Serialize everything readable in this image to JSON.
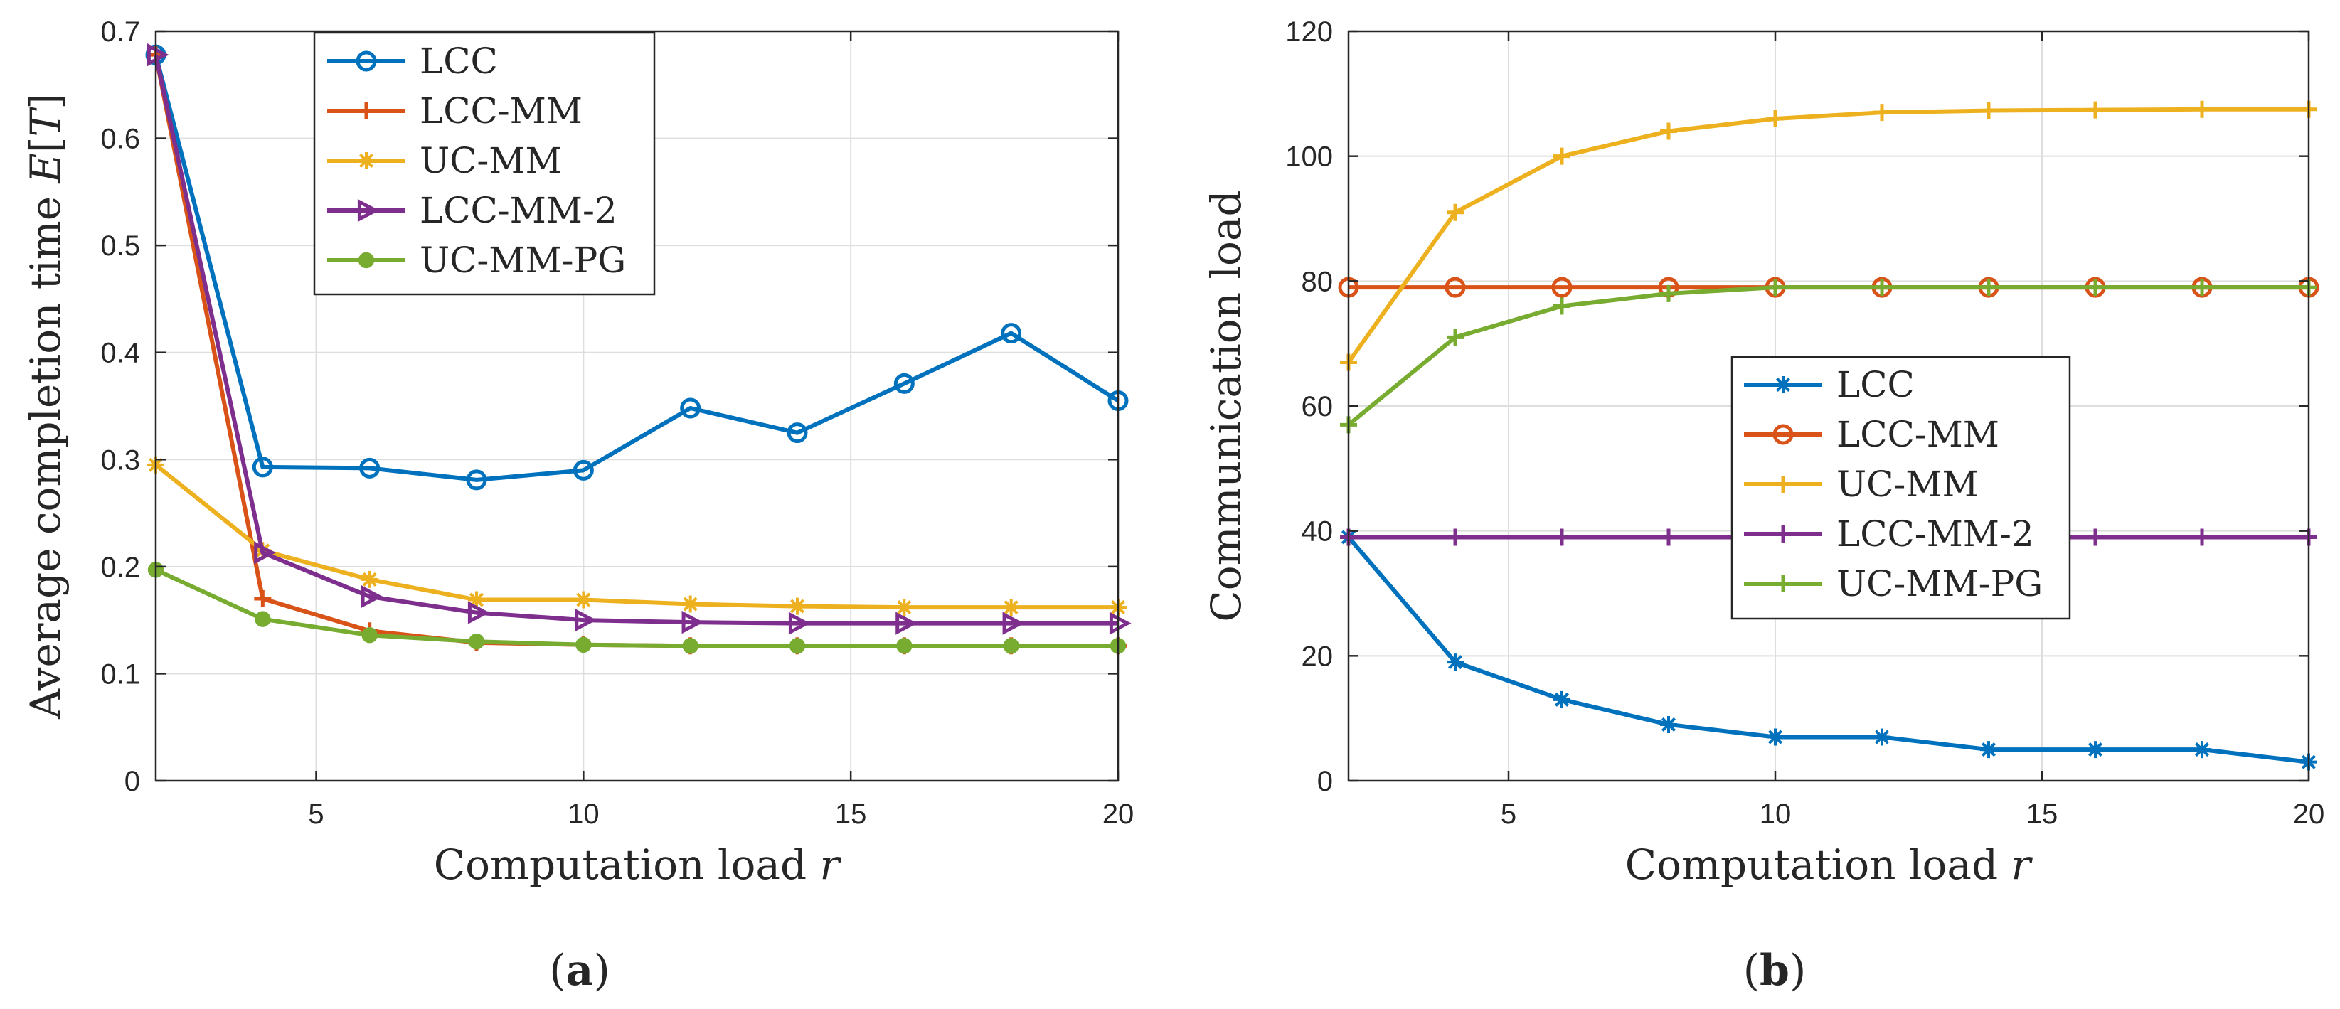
{
  "figure": {
    "caption_a": "(a)",
    "caption_b": "(b)"
  },
  "chart_data": [
    {
      "type": "line",
      "id": "a",
      "xlabel": "Computation load r",
      "xlabel_main": "Computation load ",
      "xlabel_var": "r",
      "ylabel": "Average completion time E[T]",
      "ylabel_main": "Average completion time ",
      "ylabel_var": "E",
      "ylabel_open": "[",
      "ylabel_var2": "T",
      "ylabel_close": "]",
      "xlim": [
        2,
        20
      ],
      "ylim": [
        0,
        0.7
      ],
      "xticks": [
        5,
        10,
        15,
        20
      ],
      "yticks": [
        0,
        0.1,
        0.2,
        0.3,
        0.4,
        0.5,
        0.6,
        0.7
      ],
      "grid": true,
      "legend_position": "top-center",
      "x": [
        2,
        4,
        6,
        8,
        10,
        12,
        14,
        16,
        18,
        20
      ],
      "series": [
        {
          "name": "LCC",
          "color": "#0072BD",
          "marker": "circle-open",
          "values": [
            0.678,
            0.293,
            0.292,
            0.281,
            0.29,
            0.348,
            0.325,
            0.371,
            0.418,
            0.355
          ]
        },
        {
          "name": "LCC-MM",
          "color": "#D95319",
          "marker": "plus",
          "values": [
            0.678,
            0.17,
            0.14,
            0.129,
            0.127,
            0.126,
            0.126,
            0.126,
            0.126,
            0.126
          ]
        },
        {
          "name": "UC-MM",
          "color": "#EDB120",
          "marker": "star",
          "values": [
            0.295,
            0.215,
            0.188,
            0.169,
            0.169,
            0.165,
            0.163,
            0.162,
            0.162,
            0.162
          ]
        },
        {
          "name": "LCC-MM-2",
          "color": "#7E2F8E",
          "marker": "triangle-right",
          "values": [
            0.678,
            0.213,
            0.172,
            0.157,
            0.15,
            0.148,
            0.147,
            0.147,
            0.147,
            0.147
          ]
        },
        {
          "name": "UC-MM-PG",
          "color": "#77AC30",
          "marker": "dot",
          "values": [
            0.197,
            0.151,
            0.136,
            0.13,
            0.127,
            0.126,
            0.126,
            0.126,
            0.126,
            0.126
          ]
        }
      ]
    },
    {
      "type": "line",
      "id": "b",
      "xlabel": "Computation load r",
      "xlabel_main": "Computation load ",
      "xlabel_var": "r",
      "ylabel": "Communication load",
      "xlim": [
        2,
        20
      ],
      "ylim": [
        0,
        120
      ],
      "xticks": [
        5,
        10,
        15,
        20
      ],
      "yticks": [
        0,
        20,
        40,
        60,
        80,
        100,
        120
      ],
      "grid": true,
      "legend_position": "center",
      "x": [
        2,
        4,
        6,
        8,
        10,
        12,
        14,
        16,
        18,
        20
      ],
      "series": [
        {
          "name": "LCC",
          "color": "#0072BD",
          "marker": "star",
          "values": [
            39,
            19,
            13,
            9,
            7,
            7,
            5,
            5,
            5,
            3
          ]
        },
        {
          "name": "LCC-MM",
          "color": "#D95319",
          "marker": "circle-open",
          "values": [
            79,
            79,
            79,
            79,
            79,
            79,
            79,
            79,
            79,
            79
          ]
        },
        {
          "name": "UC-MM",
          "color": "#EDB120",
          "marker": "plus",
          "values": [
            67,
            91,
            100,
            104,
            106,
            107,
            107.3,
            107.4,
            107.5,
            107.5
          ]
        },
        {
          "name": "LCC-MM-2",
          "color": "#7E2F8E",
          "marker": "plus",
          "values": [
            39,
            39,
            39,
            39,
            39,
            39,
            39,
            39,
            39,
            39
          ]
        },
        {
          "name": "UC-MM-PG",
          "color": "#77AC30",
          "marker": "plus",
          "values": [
            57,
            71,
            76,
            78,
            79,
            79,
            79,
            79,
            79,
            79
          ]
        }
      ]
    }
  ]
}
